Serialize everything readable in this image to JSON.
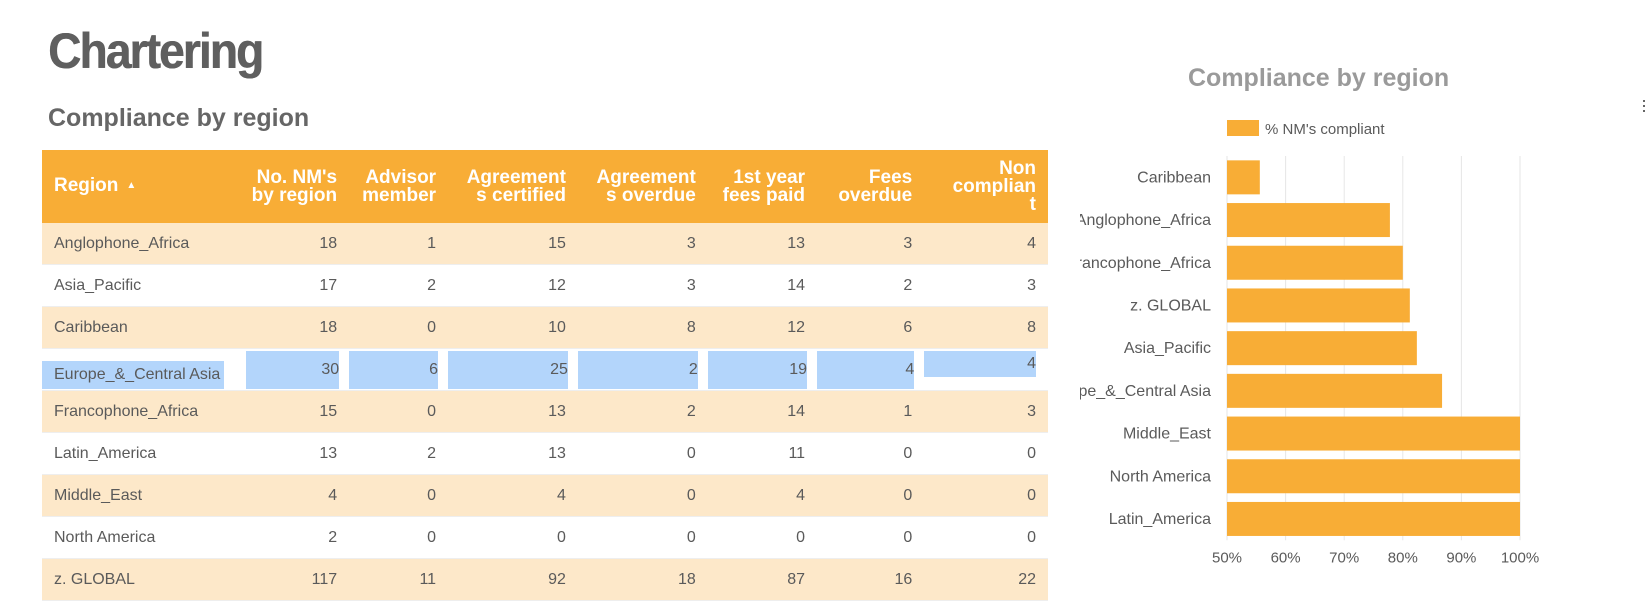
{
  "page": {
    "title": "Chartering"
  },
  "table": {
    "title": "Compliance by region",
    "headers": [
      [
        "Region"
      ],
      [
        "No. NM's",
        "by region"
      ],
      [
        "Advisor",
        "member"
      ],
      [
        "Agreement",
        "s certified"
      ],
      [
        "Agreement",
        "s overdue"
      ],
      [
        "1st year",
        "fees paid"
      ],
      [
        "Fees",
        "overdue"
      ],
      [
        "Non",
        "complian",
        "t"
      ]
    ],
    "sort_icon": "sort-ascending-icon",
    "rows": [
      [
        "Anglophone_Africa",
        "18",
        "1",
        "15",
        "3",
        "13",
        "3",
        "4"
      ],
      [
        "Asia_Pacific",
        "17",
        "2",
        "12",
        "3",
        "14",
        "2",
        "3"
      ],
      [
        "Caribbean",
        "18",
        "0",
        "10",
        "8",
        "12",
        "6",
        "8"
      ],
      [
        "Europe_&_Central Asia",
        "30",
        "6",
        "25",
        "2",
        "19",
        "4",
        "4"
      ],
      [
        "Francophone_Africa",
        "15",
        "0",
        "13",
        "2",
        "14",
        "1",
        "3"
      ],
      [
        "Latin_America",
        "13",
        "2",
        "13",
        "0",
        "11",
        "0",
        "0"
      ],
      [
        "Middle_East",
        "4",
        "0",
        "4",
        "0",
        "4",
        "0",
        "0"
      ],
      [
        "North America",
        "2",
        "0",
        "0",
        "0",
        "0",
        "0",
        "0"
      ],
      [
        "z. GLOBAL",
        "117",
        "11",
        "92",
        "18",
        "87",
        "16",
        "22"
      ]
    ],
    "selected_row": 3
  },
  "chart": {
    "title": "Compliance by region"
  },
  "chart_data": {
    "type": "bar",
    "orientation": "horizontal",
    "title": "Compliance by region",
    "categories": [
      "Caribbean",
      "Anglophone_Africa",
      "Francophone_Africa",
      "z. GLOBAL",
      "Asia_Pacific",
      "Europe_&_Central Asia",
      "Middle_East",
      "North America",
      "Latin_America"
    ],
    "series": [
      {
        "name": "% NM's compliant",
        "values": [
          55.6,
          77.8,
          80,
          81.2,
          82.4,
          86.7,
          100,
          100,
          100
        ]
      }
    ],
    "xlim": [
      50,
      100
    ],
    "ticks": [
      "50%",
      "60%",
      "70%",
      "80%",
      "90%",
      "100%"
    ],
    "tick_values": [
      50,
      60,
      70,
      80,
      90,
      100
    ],
    "grid": true,
    "legend": "top-left",
    "color": "#f8ad36"
  }
}
